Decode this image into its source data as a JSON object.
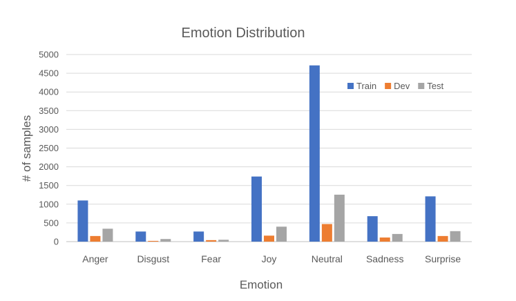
{
  "chart_data": {
    "type": "bar",
    "title": "Emotion Distribution",
    "xlabel": "Emotion",
    "ylabel": "# of samples",
    "categories": [
      "Anger",
      "Disgust",
      "Fear",
      "Joy",
      "Neutral",
      "Sadness",
      "Surprise"
    ],
    "series": [
      {
        "name": "Train",
        "color": "#4472c4",
        "values": [
          1100,
          270,
          270,
          1740,
          4710,
          680,
          1210
        ]
      },
      {
        "name": "Dev",
        "color": "#ed7d31",
        "values": [
          150,
          20,
          40,
          160,
          470,
          110,
          150
        ]
      },
      {
        "name": "Test",
        "color": "#a5a5a5",
        "values": [
          345,
          70,
          50,
          400,
          1255,
          205,
          280
        ]
      }
    ],
    "yticks": [
      "0",
      "500",
      "1000",
      "1500",
      "2000",
      "2500",
      "3000",
      "3500",
      "4000",
      "4500",
      "5000"
    ],
    "ylim": [
      0,
      5000
    ],
    "grid": true,
    "legend_position": "top-right"
  }
}
